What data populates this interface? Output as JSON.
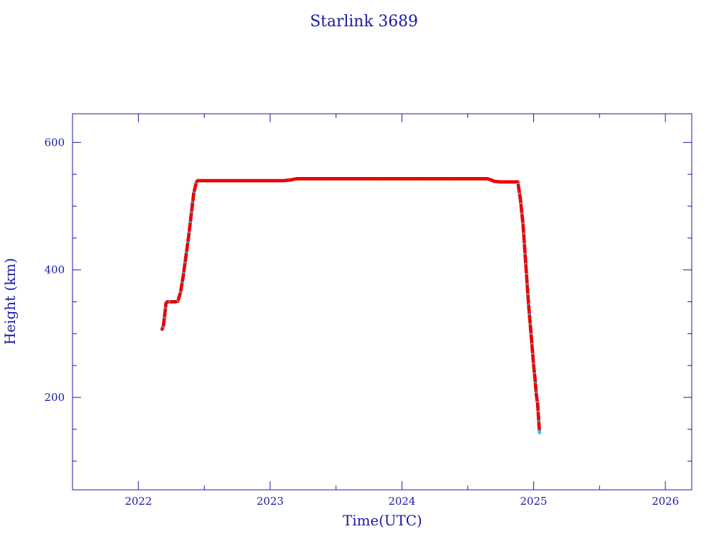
{
  "chart_data": {
    "type": "scatter",
    "title": "Starlink 3689",
    "xlabel": "Time(UTC)",
    "ylabel": "Height (km)",
    "xlim": [
      2021.5,
      2026.2
    ],
    "ylim": [
      55,
      645
    ],
    "x_ticks": [
      "2022",
      "2023",
      "2024",
      "2025",
      "2026"
    ],
    "y_ticks": [
      "200",
      "400",
      "600"
    ],
    "grid": false,
    "colors": {
      "axis": "#1a1aa6",
      "primary": "#ee0000",
      "secondary": "#22ccee"
    },
    "series": [
      {
        "values": [
          [
            2022.18,
            307
          ],
          [
            2022.19,
            312
          ],
          [
            2022.2,
            330
          ],
          [
            2022.21,
            348
          ],
          [
            2022.22,
            350
          ],
          [
            2022.25,
            350
          ],
          [
            2022.28,
            350
          ],
          [
            2022.3,
            351
          ],
          [
            2022.32,
            365
          ],
          [
            2022.34,
            390
          ],
          [
            2022.36,
            420
          ],
          [
            2022.38,
            450
          ],
          [
            2022.4,
            485
          ],
          [
            2022.42,
            520
          ],
          [
            2022.44,
            538
          ],
          [
            2022.45,
            540
          ],
          [
            2022.5,
            540
          ],
          [
            2022.6,
            540
          ],
          [
            2022.7,
            540
          ],
          [
            2022.8,
            540
          ],
          [
            2022.9,
            540
          ],
          [
            2023.0,
            540
          ],
          [
            2023.1,
            540
          ],
          [
            2023.15,
            541
          ],
          [
            2023.2,
            543
          ],
          [
            2023.3,
            543
          ],
          [
            2023.4,
            543
          ],
          [
            2023.5,
            543
          ],
          [
            2023.6,
            543
          ],
          [
            2023.7,
            543
          ],
          [
            2023.8,
            543
          ],
          [
            2023.9,
            543
          ],
          [
            2024.0,
            543
          ],
          [
            2024.1,
            543
          ],
          [
            2024.2,
            543
          ],
          [
            2024.3,
            543
          ],
          [
            2024.4,
            543
          ],
          [
            2024.5,
            543
          ],
          [
            2024.6,
            543
          ],
          [
            2024.65,
            543
          ],
          [
            2024.68,
            541
          ],
          [
            2024.7,
            539
          ],
          [
            2024.75,
            538
          ],
          [
            2024.8,
            538
          ],
          [
            2024.85,
            538
          ],
          [
            2024.88,
            538
          ],
          [
            2024.9,
            510
          ],
          [
            2024.92,
            470
          ],
          [
            2024.94,
            410
          ],
          [
            2024.96,
            350
          ],
          [
            2024.98,
            300
          ],
          [
            2025.0,
            250
          ],
          [
            2025.01,
            230
          ],
          [
            2025.02,
            205
          ],
          [
            2025.03,
            190
          ],
          [
            2025.035,
            175
          ],
          [
            2025.04,
            158
          ],
          [
            2025.045,
            145
          ]
        ]
      }
    ]
  }
}
